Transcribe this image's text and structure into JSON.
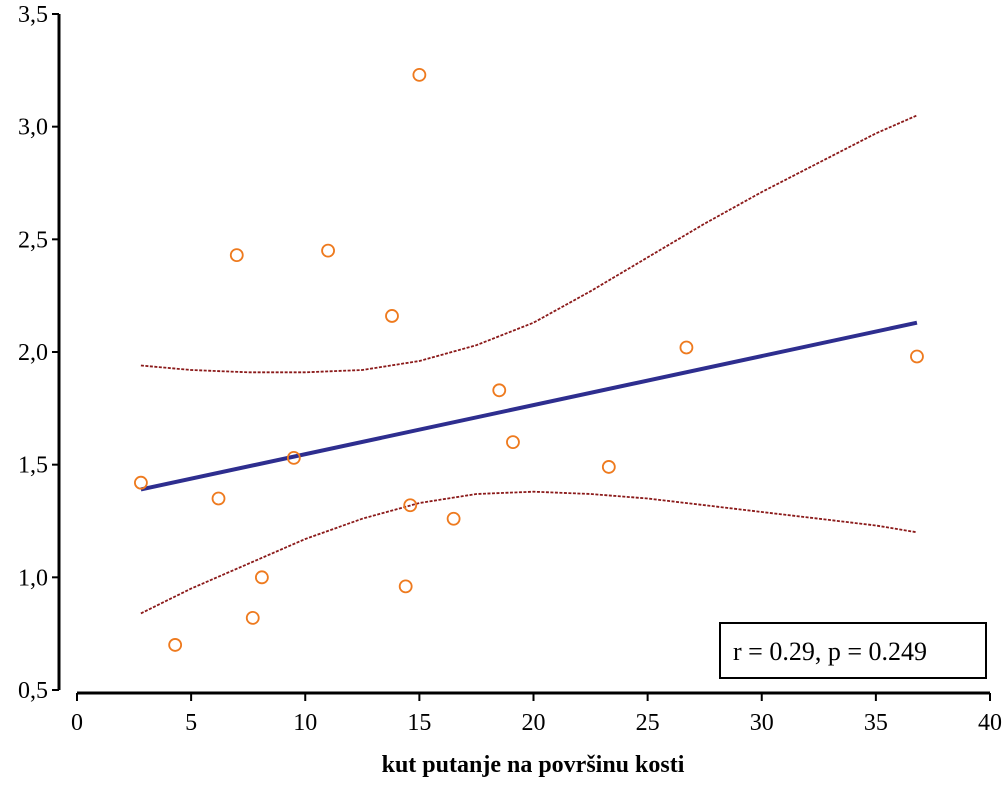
{
  "chart_data": {
    "type": "scatter",
    "title": "",
    "xlabel": "kut putanje na površinu kosti",
    "ylabel": "",
    "xlim": [
      0,
      40
    ],
    "ylim": [
      0.5,
      3.5
    ],
    "x_ticks": [
      0,
      5,
      10,
      15,
      20,
      25,
      30,
      35,
      40
    ],
    "x_tick_labels": [
      "0",
      "5",
      "10",
      "15",
      "20",
      "25",
      "30",
      "35",
      "40"
    ],
    "y_ticks": [
      0.5,
      1.0,
      1.5,
      2.0,
      2.5,
      3.0,
      3.5
    ],
    "y_tick_labels": [
      "0,5",
      "1,0",
      "1,5",
      "2,0",
      "2,5",
      "3,0",
      "3,5"
    ],
    "grid": false,
    "colors": {
      "points": "#ee7a1e",
      "fit": "#2e2e8f",
      "ci": "#8b1a1a"
    },
    "points": [
      {
        "x": 2.8,
        "y": 1.42
      },
      {
        "x": 4.3,
        "y": 0.7
      },
      {
        "x": 6.2,
        "y": 1.35
      },
      {
        "x": 7.0,
        "y": 2.43
      },
      {
        "x": 7.7,
        "y": 0.82
      },
      {
        "x": 8.1,
        "y": 1.0
      },
      {
        "x": 9.5,
        "y": 1.53
      },
      {
        "x": 11.0,
        "y": 2.45
      },
      {
        "x": 13.8,
        "y": 2.16
      },
      {
        "x": 14.4,
        "y": 0.96
      },
      {
        "x": 14.6,
        "y": 1.32
      },
      {
        "x": 15.0,
        "y": 3.23
      },
      {
        "x": 16.5,
        "y": 1.26
      },
      {
        "x": 18.5,
        "y": 1.83
      },
      {
        "x": 19.1,
        "y": 1.6
      },
      {
        "x": 23.3,
        "y": 1.49
      },
      {
        "x": 26.7,
        "y": 2.02
      },
      {
        "x": 36.8,
        "y": 1.98
      }
    ],
    "fit_line": {
      "x": [
        2.8,
        36.8
      ],
      "y": [
        1.39,
        2.13
      ]
    },
    "ci_upper": {
      "x": [
        2.8,
        5,
        7.5,
        10,
        12.5,
        15,
        17.5,
        20,
        22.5,
        25,
        27.5,
        30,
        32.5,
        35,
        36.8
      ],
      "y": [
        1.94,
        1.92,
        1.91,
        1.91,
        1.92,
        1.96,
        2.03,
        2.13,
        2.27,
        2.42,
        2.57,
        2.71,
        2.84,
        2.97,
        3.05
      ]
    },
    "ci_lower": {
      "x": [
        2.8,
        5,
        7.5,
        10,
        12.5,
        15,
        17.5,
        20,
        22.5,
        25,
        27.5,
        30,
        32.5,
        35,
        36.8
      ],
      "y": [
        0.84,
        0.95,
        1.06,
        1.17,
        1.26,
        1.33,
        1.37,
        1.38,
        1.37,
        1.35,
        1.32,
        1.29,
        1.26,
        1.23,
        1.2
      ]
    },
    "annotation": "r = 0.29, p = 0.249"
  }
}
